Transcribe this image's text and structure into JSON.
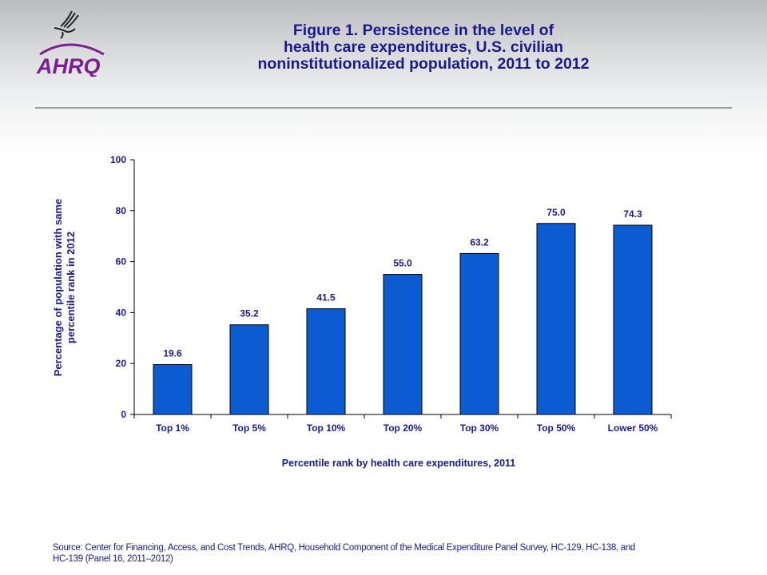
{
  "header": {
    "logo_text": "AHRQ",
    "title_lines": [
      "Figure 1. Persistence in the level of",
      "health care expenditures, U.S. civilian",
      "noninstitutionalized  population, 2011 to 2012"
    ]
  },
  "chart_data": {
    "type": "bar",
    "title": "Figure 1. Persistence in the level of health care expenditures, U.S. civilian noninstitutionalized population, 2011 to 2012",
    "categories": [
      "Top 1%",
      "Top 5%",
      "Top 10%",
      "Top 20%",
      "Top 30%",
      "Top 50%",
      "Lower 50%"
    ],
    "values": [
      19.6,
      35.2,
      41.5,
      55.0,
      63.2,
      75.0,
      74.3
    ],
    "value_labels": [
      "19.6",
      "35.2",
      "41.5",
      "55.0",
      "63.2",
      "75.0",
      "74.3"
    ],
    "xlabel": "Percentile rank by health care expenditures, 2011",
    "ylabel_lines": [
      "Percentage of population with same",
      "percentile rank in 2012"
    ],
    "ylabel": "Percentage of population with same percentile rank in 2012",
    "ylim": [
      0,
      100
    ],
    "yticks": [
      0,
      20,
      40,
      60,
      80,
      100
    ],
    "grid": false,
    "legend": "none",
    "bar_color": "#0d5bd1",
    "text_color": "#1a1a8c"
  },
  "footer": {
    "source_lines": [
      "Source: Center for Financing, Access, and Cost Trends, AHRQ, Household Component of the Medical Expenditure Panel Survey,  HC-129, HC-138, and",
      "HC-139 (Panel 16, 2011–2012)"
    ]
  }
}
